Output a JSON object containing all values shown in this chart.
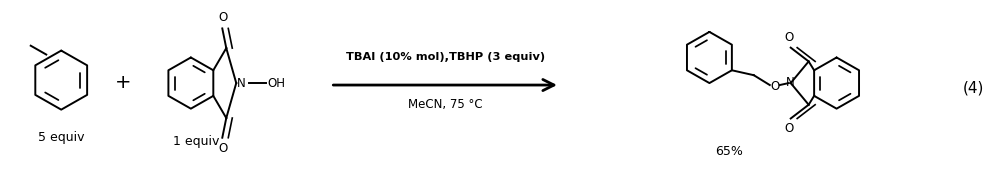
{
  "figure_width": 10.0,
  "figure_height": 1.75,
  "dpi": 100,
  "background_color": "#ffffff",
  "text_color": "#000000",
  "arrow_color": "#000000",
  "reaction_label": "TBAI (10% mol),TBHP (3 equiv)",
  "reaction_label2": "MeCN, 75 °C",
  "reagent1_label": "5 equiv",
  "reagent2_label": "1 equiv",
  "product_label": "65%",
  "equation_number": "(4)",
  "plus_sign": "+",
  "line_width": 1.4,
  "font_size_labels": 9,
  "font_size_number": 11
}
